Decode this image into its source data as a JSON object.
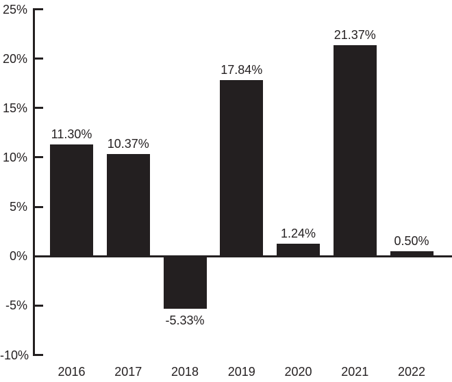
{
  "chart_data": {
    "type": "bar",
    "title": "",
    "xlabel": "",
    "ylabel": "",
    "categories": [
      "2016",
      "2017",
      "2018",
      "2019",
      "2020",
      "2021",
      "2022"
    ],
    "values": [
      11.3,
      10.37,
      -5.33,
      17.84,
      1.24,
      21.37,
      0.5
    ],
    "value_labels": [
      "11.30%",
      "10.37%",
      "-5.33%",
      "17.84%",
      "1.24%",
      "21.37%",
      "0.50%"
    ],
    "y_ticks": [
      25,
      20,
      15,
      10,
      5,
      0,
      -5,
      -10
    ],
    "y_tick_labels": [
      "25%",
      "20%",
      "15%",
      "10%",
      "5%",
      "0%",
      "-5%",
      "-10%"
    ],
    "ylim": [
      -10,
      25
    ],
    "grid": false,
    "legend": null,
    "bar_color": "#231f20",
    "text_color": "#231f20",
    "background": "#ffffff"
  }
}
